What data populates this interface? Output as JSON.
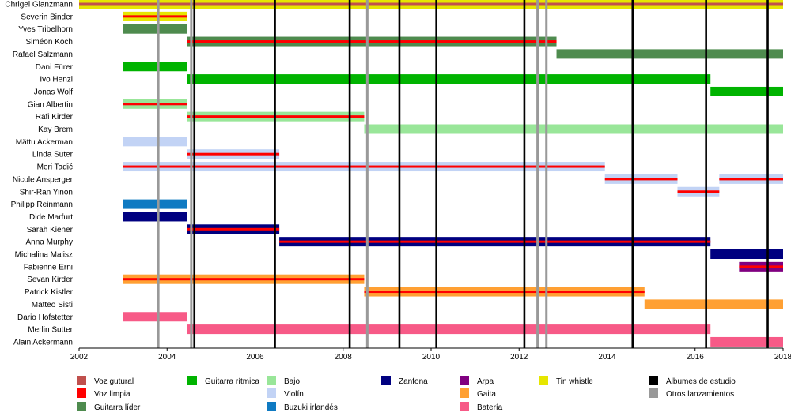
{
  "chart_data": {
    "type": "timeline",
    "x_range": [
      2002,
      2018
    ],
    "x_ticks": [
      2002,
      2004,
      2006,
      2008,
      2010,
      2012,
      2014,
      2016,
      2018
    ],
    "roles": {
      "voz_gutural": {
        "label": "Voz gutural",
        "color": "#c0504d"
      },
      "voz_limpia": {
        "label": "Voz limpia",
        "color": "#ff0000"
      },
      "guitarra_lider": {
        "label": "Guitarra líder",
        "color": "#4e8b4e"
      },
      "guitarra_ritmica": {
        "label": "Guitarra rítmica",
        "color": "#00b300"
      },
      "bajo": {
        "label": "Bajo",
        "color": "#99e699"
      },
      "violin": {
        "label": "Violín",
        "color": "#c2d3f5"
      },
      "buzuki": {
        "label": "Buzuki irlandés",
        "color": "#0f7ac2"
      },
      "zanfona": {
        "label": "Zanfona",
        "color": "#000080"
      },
      "gaita": {
        "label": "Gaita",
        "color": "#ffa033"
      },
      "arpa": {
        "label": "Arpa",
        "color": "#800080"
      },
      "bateria": {
        "label": "Batería",
        "color": "#f75a87"
      },
      "tin_whistle": {
        "label": "Tin whistle",
        "color": "#e6e600"
      },
      "albumes": {
        "label": "Álbumes de estudio",
        "color": "#000000"
      },
      "otros": {
        "label": "Otros lanzamientos",
        "color": "#999999"
      }
    },
    "legend_rows": [
      [
        "voz_gutural",
        "guitarra_ritmica",
        "bajo",
        "zanfona",
        "arpa",
        "tin_whistle",
        "albumes"
      ],
      [
        "voz_limpia",
        null,
        "violin",
        null,
        "gaita",
        null,
        "otros"
      ],
      [
        "guitarra_lider",
        null,
        "buzuki",
        null,
        "bateria",
        null,
        null
      ]
    ],
    "studio_albums": [
      2004.62,
      2006.45,
      2008.15,
      2009.28,
      2010.12,
      2012.12,
      2014.58,
      2016.25,
      2017.65
    ],
    "other_releases": [
      2003.8,
      2004.55,
      2008.55,
      2012.42,
      2012.62
    ],
    "members": [
      {
        "name": "Chrigel Glanzmann",
        "segments": [
          {
            "from": 2002.0,
            "to": 2018.0,
            "base": "tin_whistle",
            "stripe": "voz_gutural"
          }
        ]
      },
      {
        "name": "Severin Binder",
        "segments": [
          {
            "from": 2003.0,
            "to": 2004.45,
            "base": "tin_whistle",
            "stripe": "voz_limpia"
          }
        ]
      },
      {
        "name": "Yves Tribelhorn",
        "segments": [
          {
            "from": 2003.0,
            "to": 2004.45,
            "base": "guitarra_lider"
          }
        ]
      },
      {
        "name": "Siméon Koch",
        "segments": [
          {
            "from": 2004.45,
            "to": 2012.85,
            "base": "guitarra_lider",
            "stripe": "voz_limpia"
          }
        ]
      },
      {
        "name": "Rafael Salzmann",
        "segments": [
          {
            "from": 2012.85,
            "to": 2018.0,
            "base": "guitarra_lider"
          }
        ]
      },
      {
        "name": "Dani Fürer",
        "segments": [
          {
            "from": 2003.0,
            "to": 2004.45,
            "base": "guitarra_ritmica"
          }
        ]
      },
      {
        "name": "Ivo Henzi",
        "segments": [
          {
            "from": 2004.45,
            "to": 2016.35,
            "base": "guitarra_ritmica"
          }
        ]
      },
      {
        "name": "Jonas Wolf",
        "segments": [
          {
            "from": 2016.35,
            "to": 2018.0,
            "base": "guitarra_ritmica"
          }
        ]
      },
      {
        "name": "Gian Albertin",
        "segments": [
          {
            "from": 2003.0,
            "to": 2004.45,
            "base": "bajo",
            "stripe": "voz_limpia"
          }
        ]
      },
      {
        "name": "Rafi Kirder",
        "segments": [
          {
            "from": 2004.45,
            "to": 2008.48,
            "base": "bajo",
            "stripe": "voz_limpia"
          }
        ]
      },
      {
        "name": "Kay Brem",
        "segments": [
          {
            "from": 2008.48,
            "to": 2018.0,
            "base": "bajo"
          }
        ]
      },
      {
        "name": "Mättu Ackerman",
        "segments": [
          {
            "from": 2003.0,
            "to": 2004.45,
            "base": "violin"
          }
        ]
      },
      {
        "name": "Linda Suter",
        "segments": [
          {
            "from": 2004.45,
            "to": 2006.55,
            "base": "violin",
            "stripe": "voz_limpia"
          }
        ]
      },
      {
        "name": "Meri Tadić",
        "segments": [
          {
            "from": 2003.0,
            "to": 2013.95,
            "base": "violin",
            "stripe": "voz_limpia"
          }
        ]
      },
      {
        "name": "Nicole Ansperger",
        "segments": [
          {
            "from": 2013.95,
            "to": 2015.6,
            "base": "violin",
            "stripe": "voz_limpia"
          },
          {
            "from": 2016.55,
            "to": 2018.0,
            "base": "violin",
            "stripe": "voz_limpia"
          }
        ]
      },
      {
        "name": "Shir-Ran Yinon",
        "segments": [
          {
            "from": 2015.6,
            "to": 2016.55,
            "base": "violin",
            "stripe": "voz_limpia"
          }
        ]
      },
      {
        "name": "Philipp Reinmann",
        "segments": [
          {
            "from": 2003.0,
            "to": 2004.45,
            "base": "buzuki"
          }
        ]
      },
      {
        "name": "Dide Marfurt",
        "segments": [
          {
            "from": 2003.0,
            "to": 2004.45,
            "base": "zanfona"
          }
        ]
      },
      {
        "name": "Sarah Kiener",
        "segments": [
          {
            "from": 2004.45,
            "to": 2006.55,
            "base": "zanfona",
            "stripe": "voz_limpia"
          }
        ]
      },
      {
        "name": "Anna Murphy",
        "segments": [
          {
            "from": 2006.55,
            "to": 2016.35,
            "base": "zanfona",
            "stripe": "voz_limpia"
          }
        ]
      },
      {
        "name": "Michalina Malisz",
        "segments": [
          {
            "from": 2016.35,
            "to": 2018.0,
            "base": "zanfona"
          }
        ]
      },
      {
        "name": "Fabienne Erni",
        "segments": [
          {
            "from": 2017.0,
            "to": 2018.0,
            "base": "arpa",
            "stripe": "voz_limpia"
          }
        ]
      },
      {
        "name": "Sevan Kirder",
        "segments": [
          {
            "from": 2003.0,
            "to": 2008.48,
            "base": "gaita",
            "stripe": "voz_limpia"
          }
        ]
      },
      {
        "name": "Patrick Kistler",
        "segments": [
          {
            "from": 2008.48,
            "to": 2014.85,
            "base": "gaita",
            "stripe": "voz_limpia"
          }
        ]
      },
      {
        "name": "Matteo Sisti",
        "segments": [
          {
            "from": 2014.85,
            "to": 2018.0,
            "base": "gaita"
          }
        ]
      },
      {
        "name": "Dario Hofstetter",
        "segments": [
          {
            "from": 2003.0,
            "to": 2004.45,
            "base": "bateria"
          }
        ]
      },
      {
        "name": "Merlin Sutter",
        "segments": [
          {
            "from": 2004.45,
            "to": 2016.35,
            "base": "bateria"
          }
        ]
      },
      {
        "name": "Alain Ackermann",
        "segments": [
          {
            "from": 2016.35,
            "to": 2018.0,
            "base": "bateria"
          }
        ]
      }
    ]
  }
}
